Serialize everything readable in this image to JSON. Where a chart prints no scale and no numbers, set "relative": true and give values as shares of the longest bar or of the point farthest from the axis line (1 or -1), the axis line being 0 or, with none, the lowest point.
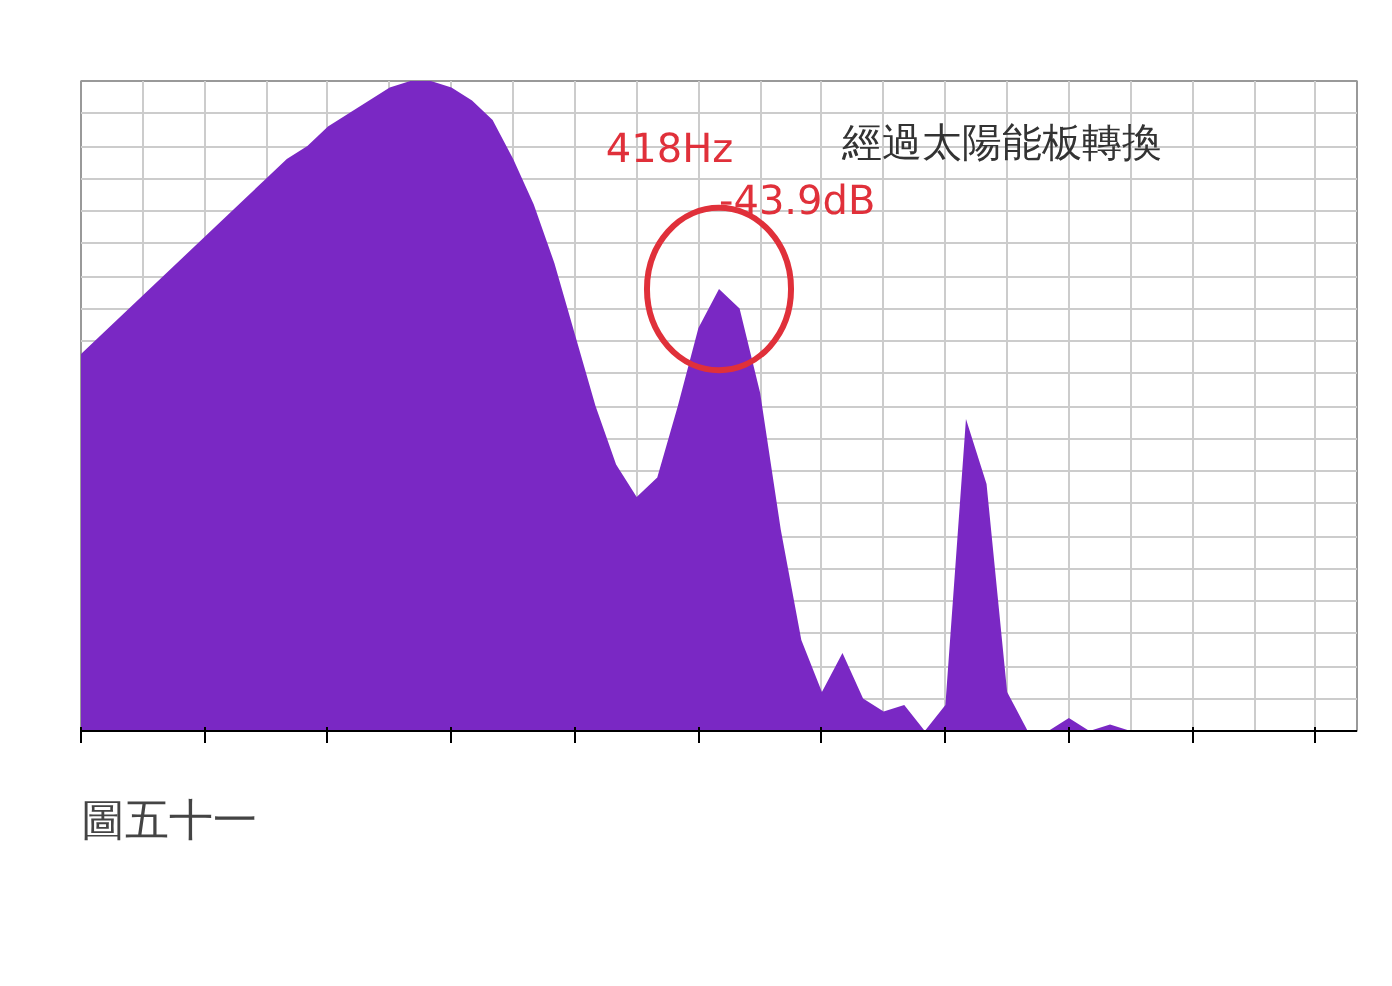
{
  "chart_data": {
    "type": "area",
    "relative": true,
    "grid": true,
    "categories": [
      null,
      null,
      null,
      null,
      null,
      null,
      null,
      null,
      null,
      null,
      null,
      null,
      null,
      null,
      null,
      null,
      null,
      null,
      null,
      null,
      null,
      null,
      null,
      null,
      null,
      null,
      null,
      null,
      null,
      null,
      null,
      null,
      null,
      null,
      null,
      null,
      null,
      null,
      null,
      null,
      null,
      null,
      null,
      null,
      null,
      null,
      null,
      null,
      null,
      null,
      null,
      null,
      null,
      null,
      null,
      null,
      null,
      null,
      null,
      null,
      null,
      null,
      null
    ],
    "series": [
      {
        "color": "#7a28c4",
        "values": [
          0.58,
          0.61,
          0.64,
          0.67,
          0.7,
          0.73,
          0.76,
          0.79,
          0.82,
          0.85,
          0.88,
          0.9,
          0.93,
          0.95,
          0.97,
          0.99,
          1.0,
          1.0,
          0.99,
          0.97,
          0.94,
          0.88,
          0.81,
          0.72,
          0.61,
          0.5,
          0.41,
          0.36,
          0.39,
          0.5,
          0.62,
          0.68,
          0.65,
          0.52,
          0.31,
          0.14,
          0.06,
          0.12,
          0.05,
          0.03,
          0.04,
          0.0,
          0.04,
          0.48,
          0.38,
          0.06,
          0.0,
          0.0,
          0.02,
          0.0,
          0.01,
          0.0,
          0.0,
          0.0,
          0.0,
          0.0,
          0.0,
          0.0,
          0.0,
          0.0,
          0.0,
          0.0,
          0.0
        ]
      }
    ],
    "annotations": [
      "418Hz",
      "-43.9dB",
      "經過太陽能板轉換",
      "圖五十一"
    ]
  }
}
